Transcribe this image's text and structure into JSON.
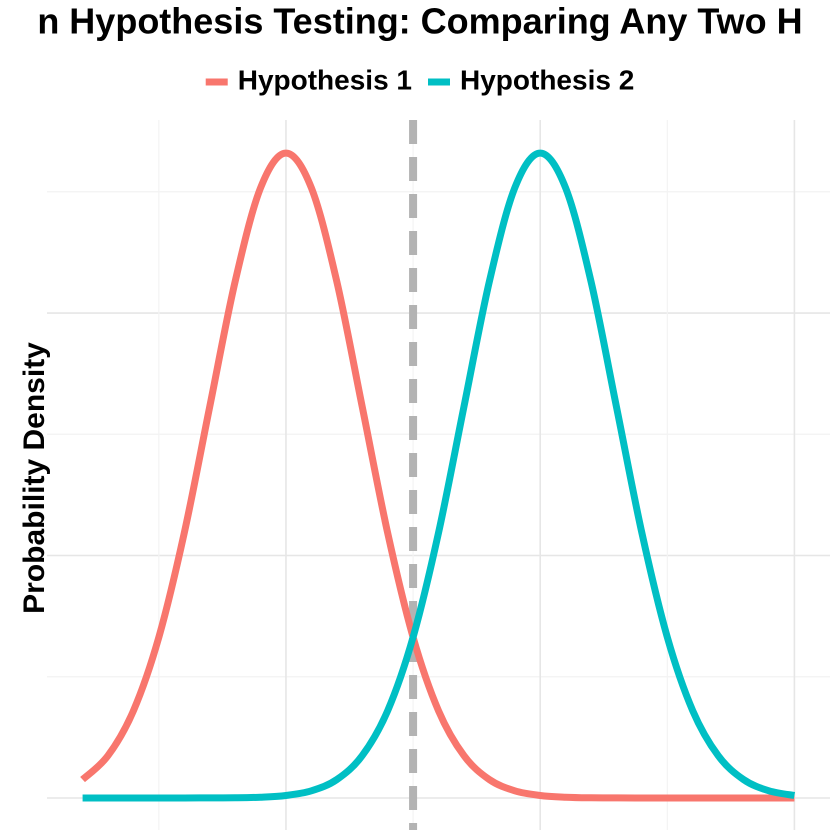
{
  "chart_data": {
    "type": "line",
    "title": "n Hypothesis Testing: Comparing Any Two H",
    "ylabel": "Probability Density",
    "x": [
      -1.6,
      -1.4,
      -1.2,
      -1.0,
      -0.8,
      -0.6,
      -0.4,
      -0.2,
      0,
      0.2,
      0.4,
      0.6,
      0.8,
      1.0,
      1.2,
      1.4,
      1.6,
      1.8,
      2.0,
      2.2,
      2.4,
      2.6,
      2.8,
      3.0,
      3.2,
      3.4,
      3.6,
      3.8,
      4.0
    ],
    "series": [
      {
        "name": "Hypothesis 1",
        "color": "#F8766D",
        "values": [
          0.019,
          0.0437,
          0.09,
          0.1658,
          0.2733,
          0.4033,
          0.5324,
          0.629,
          0.6649,
          0.629,
          0.5324,
          0.4033,
          0.2733,
          0.1658,
          0.09,
          0.0437,
          0.019,
          0.0074,
          0.0026,
          0.0008,
          0.0002,
          0.0001,
          0,
          0,
          0,
          0,
          0,
          0,
          0
        ]
      },
      {
        "name": "Hypothesis 2",
        "color": "#00BFC4",
        "values": [
          0,
          0,
          0,
          0,
          0,
          0.0001,
          0.0002,
          0.0008,
          0.0026,
          0.0074,
          0.019,
          0.0437,
          0.09,
          0.1658,
          0.2733,
          0.4033,
          0.5324,
          0.629,
          0.6649,
          0.629,
          0.5324,
          0.4033,
          0.2733,
          0.1658,
          0.09,
          0.0437,
          0.019,
          0.0074,
          0.0026
        ]
      }
    ],
    "vline": 1,
    "vline_color": "#b3b3b3",
    "xlim": [
      -1.88,
      4.28
    ],
    "ylim": [
      -0.033,
      0.699
    ],
    "xgrid": [
      0,
      2,
      4
    ],
    "xgrid_minor": [
      -1,
      1,
      3
    ],
    "ygrid": [
      0,
      0.25,
      0.5
    ],
    "ygrid_minor": [
      0.125,
      0.375,
      0.625
    ],
    "legend": "top"
  }
}
